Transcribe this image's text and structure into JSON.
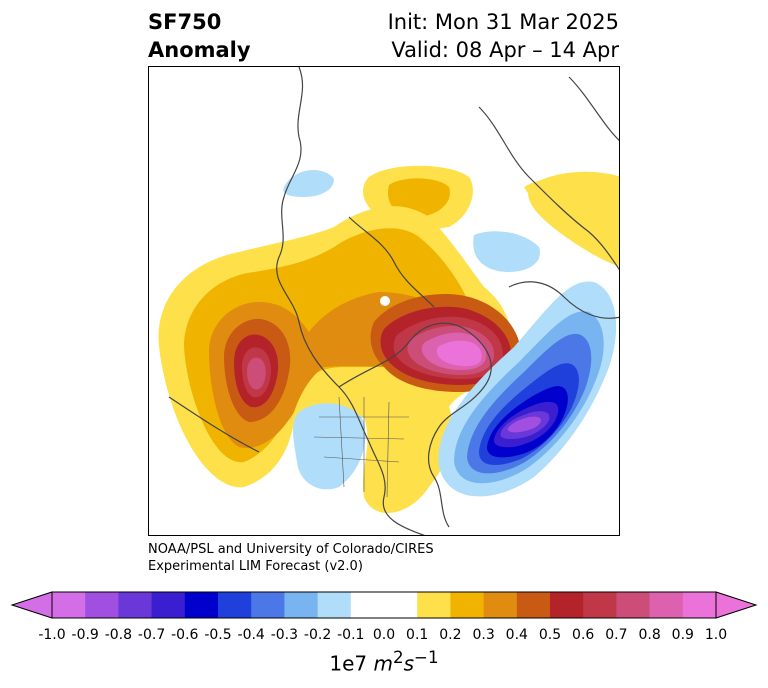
{
  "title": {
    "line1": "SF750",
    "line2": "Anomaly"
  },
  "init": "Init: Mon 31 Mar 2025",
  "valid": "Valid: 08 Apr – 14 Apr",
  "credit": {
    "line1": "NOAA/PSL and University of Colorado/CIRES",
    "line2": "Experimental LIM Forecast (v2.0)"
  },
  "colorbar": {
    "colors": [
      "#d46ee6",
      "#a04fe0",
      "#6a37d9",
      "#3a1fd1",
      "#0000cc",
      "#2040db",
      "#4b78e6",
      "#78b4f0",
      "#b0ddfa",
      "#ffffff",
      "#ffffff",
      "#fde04a",
      "#f0b400",
      "#e08c10",
      "#c85a14",
      "#b4232a",
      "#c03848",
      "#cc4e78",
      "#dc62b0",
      "#ea72d8"
    ],
    "ticks": [
      "-1.0",
      "-0.9",
      "-0.8",
      "-0.7",
      "-0.6",
      "-0.5",
      "-0.4",
      "-0.3",
      "-0.2",
      "-0.1",
      "0.0",
      "0.1",
      "0.2",
      "0.3",
      "0.4",
      "0.5",
      "0.6",
      "0.7",
      "0.8",
      "0.9",
      "1.0"
    ],
    "units_text": "1e7 ",
    "units_math": "m",
    "units_sup1": "2",
    "units_s": "s",
    "units_sup2": "−1"
  },
  "map": {
    "projection": "north-polar-stereographic",
    "anomaly_features": [
      {
        "name": "north-pacific-positive",
        "max_value": 0.9
      },
      {
        "name": "canada-greenland-positive",
        "max_value": 1.0
      },
      {
        "name": "atlantic-negative",
        "min_value": -0.9
      },
      {
        "name": "eurasia-positive",
        "max_value": 0.1
      },
      {
        "name": "siberia-positive",
        "max_value": 0.1
      }
    ]
  }
}
